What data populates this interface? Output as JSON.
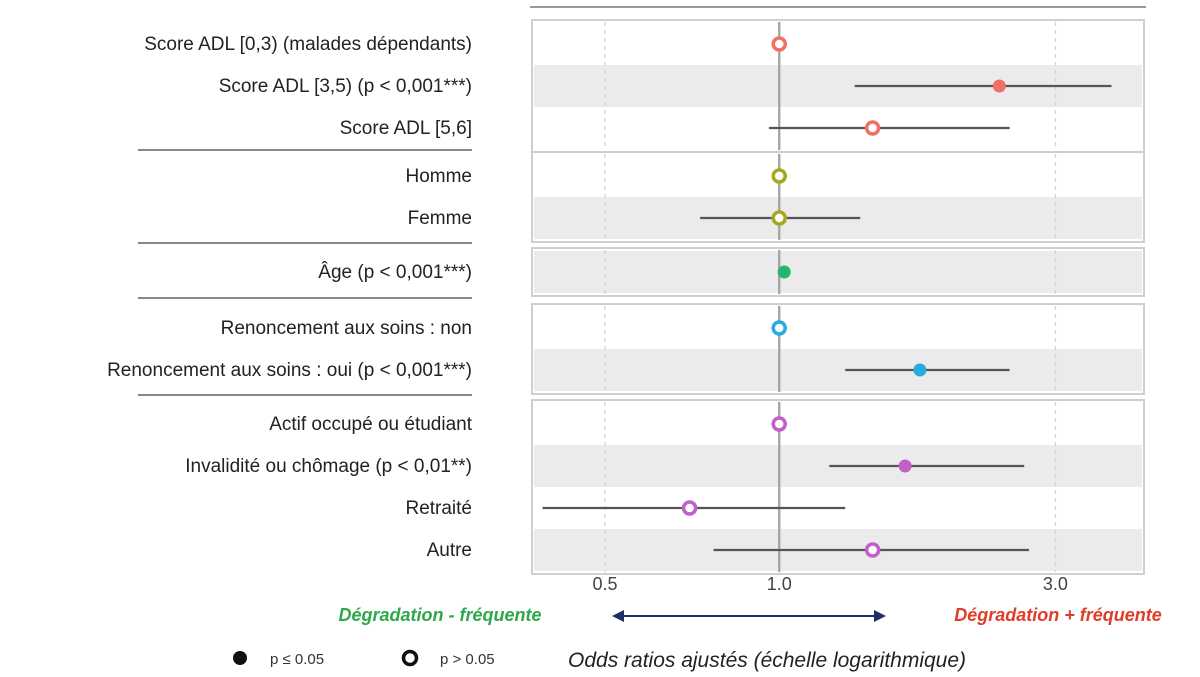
{
  "chart_data": {
    "type": "forest",
    "scale": "log",
    "xlim": [
      0.38,
      4.2
    ],
    "x_ticks": [
      {
        "value": 0.5,
        "label": "0.5"
      },
      {
        "value": 1.0,
        "label": "1.0"
      },
      {
        "value": 3.0,
        "label": "3.0"
      }
    ],
    "reference_value": 1.0,
    "xlabel": "Odds ratios ajustés (échelle logarithmique)",
    "direction_left": "Dégradation - fréquente",
    "direction_right": "Dégradation + fréquente",
    "legend": [
      {
        "marker": "filled",
        "label": "p ≤ 0.05"
      },
      {
        "marker": "open",
        "label": "p > 0.05"
      }
    ],
    "panels": [
      {
        "color": "#f07068",
        "rows": [
          {
            "label": "Score ADL [0,3)  (malades dépendants)",
            "or": 1.0,
            "lower": null,
            "upper": null,
            "significant": false
          },
          {
            "label": "Score ADL [3,5) (p < 0,001***)",
            "or": 2.4,
            "lower": 1.35,
            "upper": 3.75,
            "significant": true
          },
          {
            "label": "Score ADL [5,6]",
            "or": 1.45,
            "lower": 0.96,
            "upper": 2.5,
            "significant": false
          }
        ]
      },
      {
        "color": "#a8a820",
        "rows": [
          {
            "label": "Homme",
            "or": 1.0,
            "lower": null,
            "upper": null,
            "significant": false
          },
          {
            "label": "Femme",
            "or": 1.0,
            "lower": 0.73,
            "upper": 1.38,
            "significant": false
          }
        ]
      },
      {
        "color": "#22b573",
        "rows": [
          {
            "label": "Âge (p < 0,001***)",
            "or": 1.02,
            "lower": null,
            "upper": null,
            "significant": true
          }
        ]
      },
      {
        "color": "#29aae1",
        "rows": [
          {
            "label": "Renoncement aux soins : non",
            "or": 1.0,
            "lower": null,
            "upper": null,
            "significant": false
          },
          {
            "label": "Renoncement aux soins : oui (p < 0,001***)",
            "or": 1.75,
            "lower": 1.3,
            "upper": 2.5,
            "significant": true
          }
        ]
      },
      {
        "color": "#c060c8",
        "rows": [
          {
            "label": "Actif occupé ou étudiant",
            "or": 1.0,
            "lower": null,
            "upper": null,
            "significant": false
          },
          {
            "label": "Invalidité ou chômage (p < 0,01**)",
            "or": 1.65,
            "lower": 1.22,
            "upper": 2.65,
            "significant": true
          },
          {
            "label": "Retraité",
            "or": 0.7,
            "lower": 0.39,
            "upper": 1.3,
            "significant": false
          },
          {
            "label": "Autre",
            "or": 1.45,
            "lower": 0.77,
            "upper": 2.7,
            "significant": false
          }
        ]
      }
    ]
  }
}
